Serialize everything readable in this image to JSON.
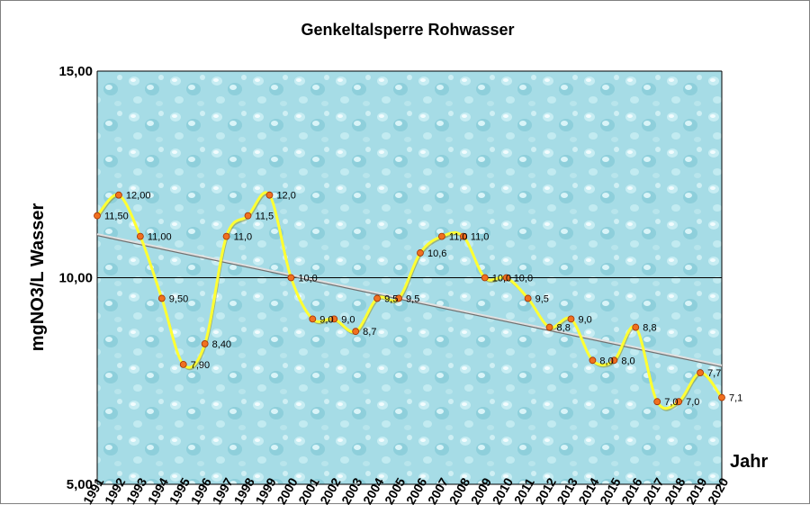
{
  "chart_data": {
    "type": "line",
    "title": "Genkeltalsperre Rohwasser",
    "xlabel": "Jahr",
    "ylabel": "mgNO3/L Wasser",
    "ylim": [
      5,
      15
    ],
    "yticks": [
      "5,00",
      "10,00",
      "15,00"
    ],
    "grid": "horizontal",
    "x": [
      "1991",
      "1992",
      "1993",
      "1994",
      "1995",
      "1996",
      "1997",
      "1998",
      "1999",
      "2000",
      "2001",
      "2002",
      "2003",
      "2004",
      "2005",
      "2006",
      "2007",
      "2008",
      "2009",
      "2010",
      "2011",
      "2012",
      "2013",
      "2014",
      "2015",
      "2016",
      "2017",
      "2018",
      "2019",
      "2020"
    ],
    "series": [
      {
        "values": [
          11.5,
          12.0,
          11.0,
          9.5,
          7.9,
          8.4,
          11.0,
          11.5,
          12.0,
          10.0,
          9.0,
          9.0,
          8.7,
          9.5,
          9.5,
          10.6,
          11.0,
          11.0,
          10.0,
          10.0,
          9.5,
          8.8,
          9.0,
          8.0,
          8.0,
          8.8,
          7.0,
          7.0,
          7.7,
          7.1
        ],
        "labels": [
          "11,50",
          "12,00",
          "11,00",
          "9,50",
          "7,90",
          "8,40",
          "11,0",
          "11,5",
          "12,0",
          "10,0",
          "9,0",
          "9,0",
          "8,7",
          "9,5",
          "9,5",
          "10,6",
          "11,0",
          "11,0",
          "10,0",
          "10,0",
          "9,5",
          "8,8",
          "9,0",
          "8,0",
          "8,0",
          "8,8",
          "7,0",
          "7,0",
          "7,7",
          "7,1"
        ],
        "color": "#ffff33",
        "marker_color": "#f07020",
        "smooth": true
      }
    ],
    "trendline": {
      "type": "linear",
      "color": "#e0e0e0"
    },
    "plot_background": "#9fd8e2"
  }
}
